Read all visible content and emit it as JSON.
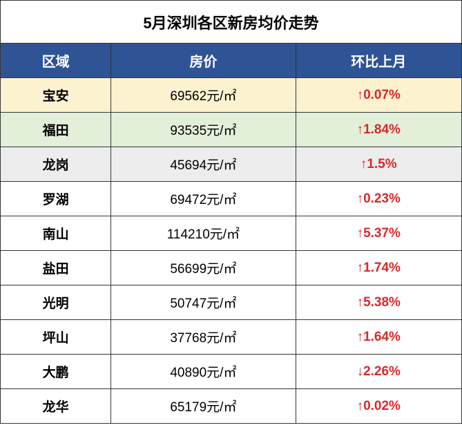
{
  "title": "5月深圳各区新房均价走势",
  "headers": {
    "district": "区域",
    "price": "房价",
    "change": "环比上月"
  },
  "colors": {
    "header_bg": "#2f5496",
    "header_text": "#ffffff",
    "up_color": "#d6292b",
    "down_color": "#d6292b",
    "border": "#333333",
    "row_bg_highlight1": "#fdf2d0",
    "row_bg_highlight2": "#e2efd9",
    "row_bg_highlight3": "#ededed",
    "row_bg_default": "#ffffff"
  },
  "rows": [
    {
      "district": "宝安",
      "price": "69562元/㎡",
      "arrow": "↑",
      "change": "0.07%",
      "direction": "up",
      "bg": "#fdf2d0"
    },
    {
      "district": "福田",
      "price": "93535元/㎡",
      "arrow": "↑",
      "change": "1.84%",
      "direction": "up",
      "bg": "#e2efd9"
    },
    {
      "district": "龙岗",
      "price": "45694元/㎡",
      "arrow": "↑",
      "change": "1.5%",
      "direction": "up",
      "bg": "#ededed"
    },
    {
      "district": "罗湖",
      "price": "69472元/㎡",
      "arrow": "↑",
      "change": "0.23%",
      "direction": "up",
      "bg": "#ffffff"
    },
    {
      "district": "南山",
      "price": "114210元/㎡",
      "arrow": "↑",
      "change": "5.37%",
      "direction": "up",
      "bg": "#ffffff"
    },
    {
      "district": "盐田",
      "price": "56699元/㎡",
      "arrow": "↑",
      "change": "1.74%",
      "direction": "up",
      "bg": "#ffffff"
    },
    {
      "district": "光明",
      "price": "50747元/㎡",
      "arrow": "↑",
      "change": "5.38%",
      "direction": "up",
      "bg": "#ffffff"
    },
    {
      "district": "坪山",
      "price": "37768元/㎡",
      "arrow": "↑",
      "change": "1.64%",
      "direction": "up",
      "bg": "#ffffff"
    },
    {
      "district": "大鹏",
      "price": "40890元/㎡",
      "arrow": "↓",
      "change": "2.26%",
      "direction": "down",
      "bg": "#ffffff"
    },
    {
      "district": "龙华",
      "price": "65179元/㎡",
      "arrow": "↑",
      "change": "0.02%",
      "direction": "up",
      "bg": "#ffffff"
    }
  ]
}
